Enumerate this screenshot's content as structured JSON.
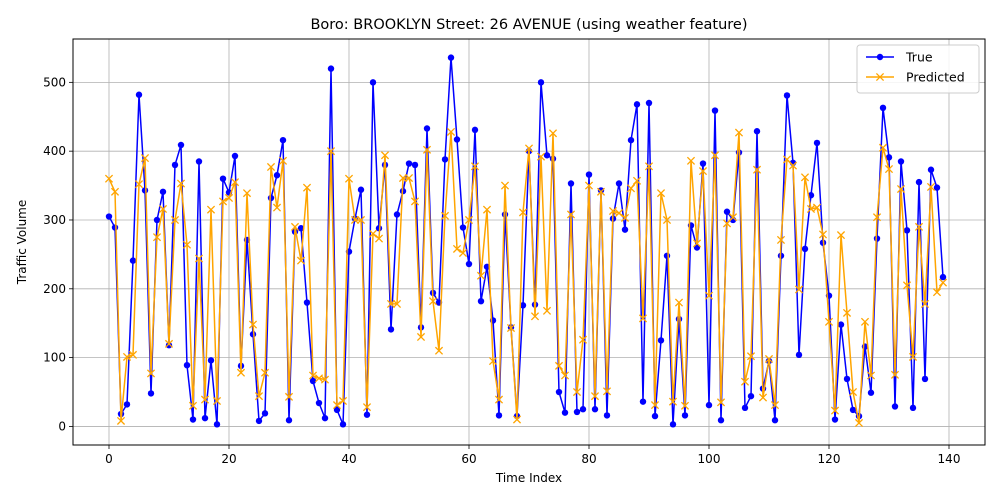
{
  "chart_data": {
    "type": "line",
    "title": "Boro: BROOKLYN Street: 26 AVENUE (using weather feature)",
    "xlabel": "Time Index",
    "ylabel": "Traffic Volume",
    "xlim": [
      -6,
      146
    ],
    "ylim": [
      -27,
      563
    ],
    "xticks": [
      0,
      20,
      40,
      60,
      80,
      100,
      120,
      140
    ],
    "yticks": [
      0,
      100,
      200,
      300,
      400,
      500
    ],
    "grid": true,
    "legend": "top-right",
    "series": [
      {
        "name": "True",
        "color": "#0000ff",
        "marker": "circle",
        "values": [
          305,
          289,
          18,
          32,
          241,
          482,
          343,
          48,
          300,
          341,
          118,
          380,
          409,
          89,
          10,
          385,
          12,
          96,
          3,
          360,
          340,
          393,
          88,
          271,
          134,
          8,
          19,
          332,
          365,
          416,
          9,
          283,
          288,
          180,
          66,
          34,
          12,
          520,
          24,
          3,
          254,
          302,
          344,
          17,
          500,
          288,
          380,
          141,
          308,
          342,
          382,
          380,
          144,
          433,
          194,
          180,
          388,
          536,
          417,
          289,
          236,
          431,
          182,
          232,
          154,
          16,
          308,
          144,
          15,
          176,
          400,
          177,
          500,
          394,
          389,
          50,
          20,
          353,
          21,
          25,
          366,
          25,
          343,
          16,
          302,
          353,
          286,
          416,
          468,
          36,
          470,
          15,
          125,
          248,
          3,
          156,
          16,
          292,
          260,
          382,
          31,
          459,
          9,
          312,
          300,
          398,
          27,
          44,
          429,
          55,
          95,
          9,
          248,
          481,
          383,
          104,
          258,
          336,
          412,
          267,
          190,
          10,
          148,
          69,
          24,
          15,
          116,
          49,
          273,
          463,
          391,
          29,
          385,
          285,
          27,
          355,
          69,
          373,
          347,
          217
        ]
      },
      {
        "name": "Predicted",
        "color": "#ffa500",
        "marker": "x",
        "values": [
          360,
          341,
          8,
          101,
          104,
          352,
          390,
          77,
          275,
          316,
          120,
          300,
          353,
          264,
          30,
          244,
          39,
          315,
          37,
          327,
          332,
          355,
          78,
          339,
          148,
          44,
          78,
          377,
          318,
          386,
          43,
          290,
          241,
          347,
          74,
          70,
          68,
          400,
          31,
          37,
          360,
          300,
          300,
          28,
          280,
          273,
          394,
          178,
          178,
          361,
          361,
          327,
          130,
          402,
          182,
          110,
          306,
          428,
          258,
          252,
          300,
          378,
          219,
          315,
          95,
          39,
          350,
          143,
          10,
          311,
          404,
          160,
          392,
          168,
          426,
          88,
          74,
          308,
          50,
          126,
          350,
          44,
          341,
          51,
          313,
          310,
          303,
          346,
          357,
          157,
          378,
          31,
          339,
          300,
          36,
          180,
          30,
          386,
          266,
          371,
          190,
          394,
          35,
          295,
          304,
          427,
          65,
          102,
          373,
          42,
          98,
          31,
          271,
          388,
          379,
          199,
          362,
          316,
          318,
          279,
          152,
          23,
          278,
          165,
          50,
          5,
          152,
          74,
          304,
          405,
          374,
          75,
          345,
          205,
          101,
          290,
          178,
          348,
          195,
          209
        ]
      }
    ]
  }
}
